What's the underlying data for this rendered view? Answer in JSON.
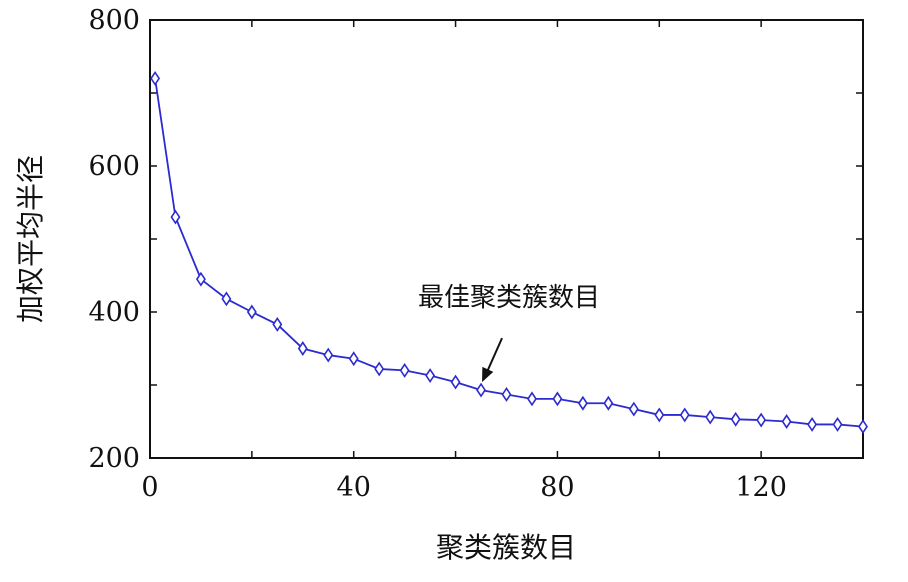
{
  "chart_data": {
    "type": "line",
    "title": "",
    "xlabel": "聚类簇数目",
    "ylabel": "加权平均半径",
    "xlim": [
      0,
      140
    ],
    "ylim": [
      200,
      800
    ],
    "xticks": [
      0,
      40,
      80,
      120
    ],
    "yticks": [
      200,
      400,
      600,
      800
    ],
    "grid": false,
    "marker": "diamond",
    "line_color": "#2b2bd0",
    "series": [
      {
        "x": [
          1,
          5,
          10,
          15,
          20,
          25,
          30,
          35,
          40,
          45,
          50,
          55,
          60,
          65,
          70,
          75,
          80,
          85,
          90,
          95,
          100,
          105,
          110,
          115,
          120,
          125,
          130,
          135,
          140
        ],
        "values": [
          720,
          530,
          445,
          418,
          400,
          383,
          350,
          341,
          336,
          322,
          320,
          313,
          304,
          293,
          287,
          281,
          281,
          275,
          275,
          267,
          259,
          259,
          256,
          253,
          252,
          250,
          246,
          246,
          243
        ]
      }
    ],
    "annotations": [
      {
        "text": "最佳聚类簇数目",
        "target_x": 65,
        "target_y": 293
      }
    ]
  }
}
